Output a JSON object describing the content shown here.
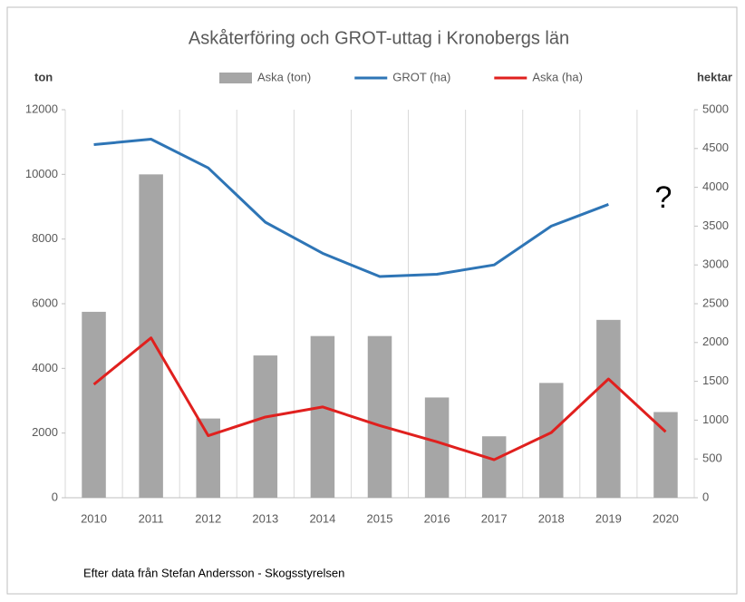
{
  "chart_data": {
    "type": "bar",
    "title": "Askåterföring och GROT-uttag i Kronobergs län",
    "y_label": "ton",
    "y2_label": "hektar",
    "annotation": "?",
    "source": "Efter data från Stefan Andersson - Skogsstyrelsen",
    "categories": [
      "2010",
      "2011",
      "2012",
      "2013",
      "2014",
      "2015",
      "2016",
      "2017",
      "2018",
      "2019",
      "2020"
    ],
    "series": [
      {
        "name": "Aska (ton)",
        "type": "bar",
        "color": "#a6a6a6",
        "values": [
          5750,
          10000,
          2450,
          4400,
          5000,
          5000,
          3100,
          1900,
          3550,
          5500,
          2650
        ]
      },
      {
        "name": "GROT (ha)",
        "type": "line",
        "axis": "y2",
        "color": "#2e75b6",
        "values": [
          4550,
          4620,
          4250,
          3550,
          3150,
          2850,
          2880,
          3000,
          3500,
          3780,
          null
        ]
      },
      {
        "name": "Aska (ha)",
        "type": "line",
        "axis": "y2",
        "color": "#e0201e",
        "values": [
          1460,
          2060,
          800,
          1040,
          1170,
          930,
          720,
          490,
          840,
          1530,
          850
        ]
      }
    ],
    "ylim": [
      0,
      12000
    ],
    "yticks": [
      0,
      2000,
      4000,
      6000,
      8000,
      10000,
      12000
    ],
    "y2lim": [
      0,
      5000
    ],
    "y2ticks": [
      0,
      500,
      1000,
      1500,
      2000,
      2500,
      3000,
      3500,
      4000,
      4500,
      5000
    ]
  }
}
